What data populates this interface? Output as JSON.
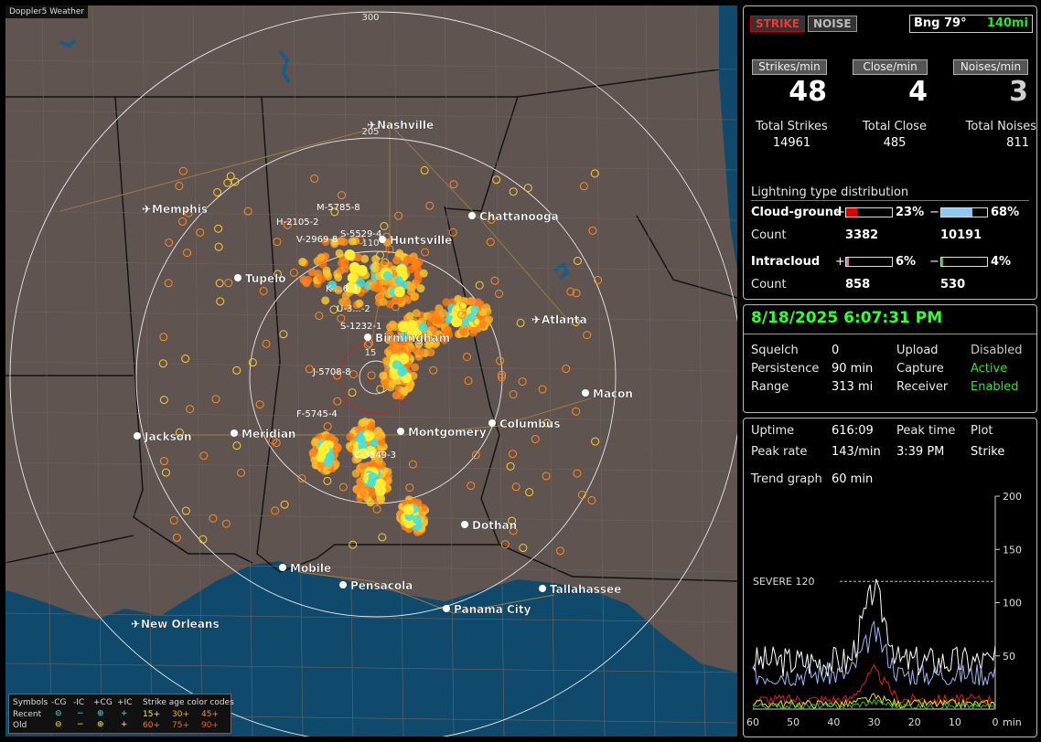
{
  "window_title": "Doppler5 Weather",
  "map": {
    "cities": [
      {
        "name": "Nashville",
        "kind": "plane"
      },
      {
        "name": "Memphis",
        "kind": "plane"
      },
      {
        "name": "Chattanooga",
        "kind": "dot"
      },
      {
        "name": "Huntsville",
        "kind": "dot"
      },
      {
        "name": "Tupelo",
        "kind": "dot"
      },
      {
        "name": "Atlanta",
        "kind": "plane"
      },
      {
        "name": "Birmingham",
        "kind": "dot"
      },
      {
        "name": "Macon",
        "kind": "dot"
      },
      {
        "name": "Jackson",
        "kind": "dot"
      },
      {
        "name": "Meridian",
        "kind": "dot"
      },
      {
        "name": "Montgomery",
        "kind": "dot"
      },
      {
        "name": "Columbus",
        "kind": "dot"
      },
      {
        "name": "Dothan",
        "kind": "dot"
      },
      {
        "name": "Mobile",
        "kind": "dot"
      },
      {
        "name": "Pensacola",
        "kind": "dot"
      },
      {
        "name": "Tallahassee",
        "kind": "dot"
      },
      {
        "name": "Panama City",
        "kind": "dot"
      },
      {
        "name": "New Orleans",
        "kind": "plane"
      }
    ],
    "ring_labels": [
      "300",
      "205",
      "110",
      "15"
    ],
    "storm_labels": [
      "M-5785-8",
      "H-2105-2",
      "V-2969-8",
      "S-5529-4",
      "K-...6-3",
      "U-3...-2",
      "S-1232-1",
      "J-5708-8",
      "F-5745-4",
      "C-3549-3"
    ],
    "legend": {
      "symbols_label": "Symbols",
      "recent_label": "Recent",
      "old_label": "Old",
      "types": [
        "-CG",
        "-IC",
        "+CG",
        "+IC"
      ],
      "age_title": "Strike age color codes",
      "recent_ages": [
        "15+",
        "30+",
        "45+"
      ],
      "old_ages": [
        "60+",
        "75+",
        "90+"
      ],
      "colors": {
        "recent_mark": "#3fe0e0",
        "old_mark": "#ffee33",
        "age15": "#ffee33",
        "age30": "#ffb020",
        "age45": "#ff8a20",
        "age60": "#ff7a10",
        "age75": "#ff6a10",
        "age90": "#ff5010"
      }
    }
  },
  "summary": {
    "tabs": [
      "STRIKE",
      "NOISE"
    ],
    "bearing": "Bng 79°",
    "distance": "140mi",
    "headers": [
      "Strikes/min",
      "Close/min",
      "Noises/min"
    ],
    "rates": [
      "48",
      "4",
      "3"
    ],
    "total_labels": [
      "Total Strikes",
      "Total Close",
      "Total Noises"
    ],
    "totals": [
      "14961",
      "485",
      "811"
    ],
    "distribution_title": "Lightning type distribution",
    "cg_label": "Cloud-ground",
    "ic_label": "Intracloud",
    "count_label": "Count",
    "plus": "+",
    "minus": "−",
    "cg_pos_pct": "23%",
    "cg_neg_pct": "68%",
    "cg_pos_count": "3382",
    "cg_neg_count": "10191",
    "ic_pos_pct": "6%",
    "ic_neg_pct": "4%",
    "ic_pos_count": "858",
    "ic_neg_count": "530",
    "bar_fractions": {
      "cg_pos": 0.23,
      "cg_neg": 0.68,
      "ic_pos": 0.06,
      "ic_neg": 0.04
    },
    "bar_colors": {
      "cg_pos": "#e00000",
      "cg_neg": "#8fc8f0",
      "ic_pos": "#e070b0",
      "ic_neg": "#30c030"
    }
  },
  "status": {
    "datetime": "8/18/2025 6:07:31 PM",
    "rows": [
      {
        "l1": "Squelch",
        "v1": "0",
        "l2": "Upload",
        "v2": "Disabled"
      },
      {
        "l1": "Persistence",
        "v1": "90 min",
        "l2": "Capture",
        "v2": "Active"
      },
      {
        "l1": "Range",
        "v1": "313 mi",
        "l2": "Receiver",
        "v2": "Enabled"
      }
    ]
  },
  "trend": {
    "uptime_label": "Uptime",
    "uptime": "616:09",
    "peak_time_label": "Peak time",
    "peak_time": "3:39 PM",
    "plot_label": "Plot",
    "plot_value": "Strike",
    "peak_rate_label": "Peak rate",
    "peak_rate": "143/min",
    "trend_label": "Trend graph",
    "trend_value": "60 min",
    "severe_label": "SEVERE 120",
    "y_ticks": [
      "200",
      "150",
      "100",
      "50"
    ],
    "x_ticks": [
      "60",
      "50",
      "40",
      "30",
      "20",
      "10",
      "0"
    ],
    "x_unit": "min"
  }
}
